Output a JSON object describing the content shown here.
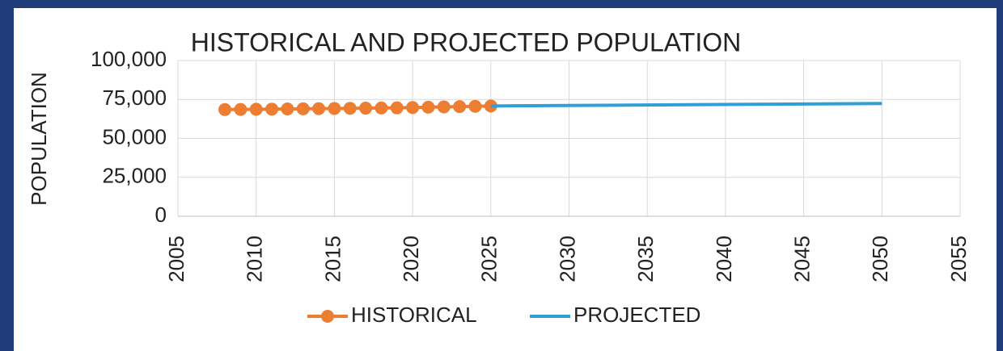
{
  "chart_data": {
    "type": "line",
    "title": "HISTORICAL AND PROJECTED POPULATION",
    "y_label": "POPULATION",
    "xlim": [
      2005,
      2055
    ],
    "xticks": [
      2005,
      2010,
      2015,
      2020,
      2025,
      2030,
      2035,
      2040,
      2045,
      2050,
      2055
    ],
    "ylim": [
      0,
      100000
    ],
    "yticks": [
      0,
      {
        "value": 25000,
        "label": "25,000"
      },
      {
        "value": 50000,
        "label": "50,000"
      },
      {
        "value": 75000,
        "label": "75,000"
      },
      {
        "value": 100000,
        "label": "100,000"
      }
    ],
    "grid": true,
    "legend": "bottom",
    "series": [
      {
        "name": "HISTORICAL",
        "color": "#ed7d31",
        "markers": true,
        "x": [
          2008,
          2009,
          2010,
          2011,
          2012,
          2013,
          2014,
          2015,
          2016,
          2017,
          2018,
          2019,
          2020,
          2021,
          2022,
          2023,
          2024,
          2025
        ],
        "values": [
          68500,
          68600,
          68700,
          68800,
          68900,
          69000,
          69100,
          69200,
          69300,
          69400,
          69500,
          69600,
          69800,
          70000,
          70200,
          70400,
          70600,
          70800
        ]
      },
      {
        "name": "PROJECTED",
        "color": "#2e9fd8",
        "markers": false,
        "x": [
          2025,
          2050
        ],
        "values": [
          70800,
          72400
        ]
      }
    ]
  }
}
